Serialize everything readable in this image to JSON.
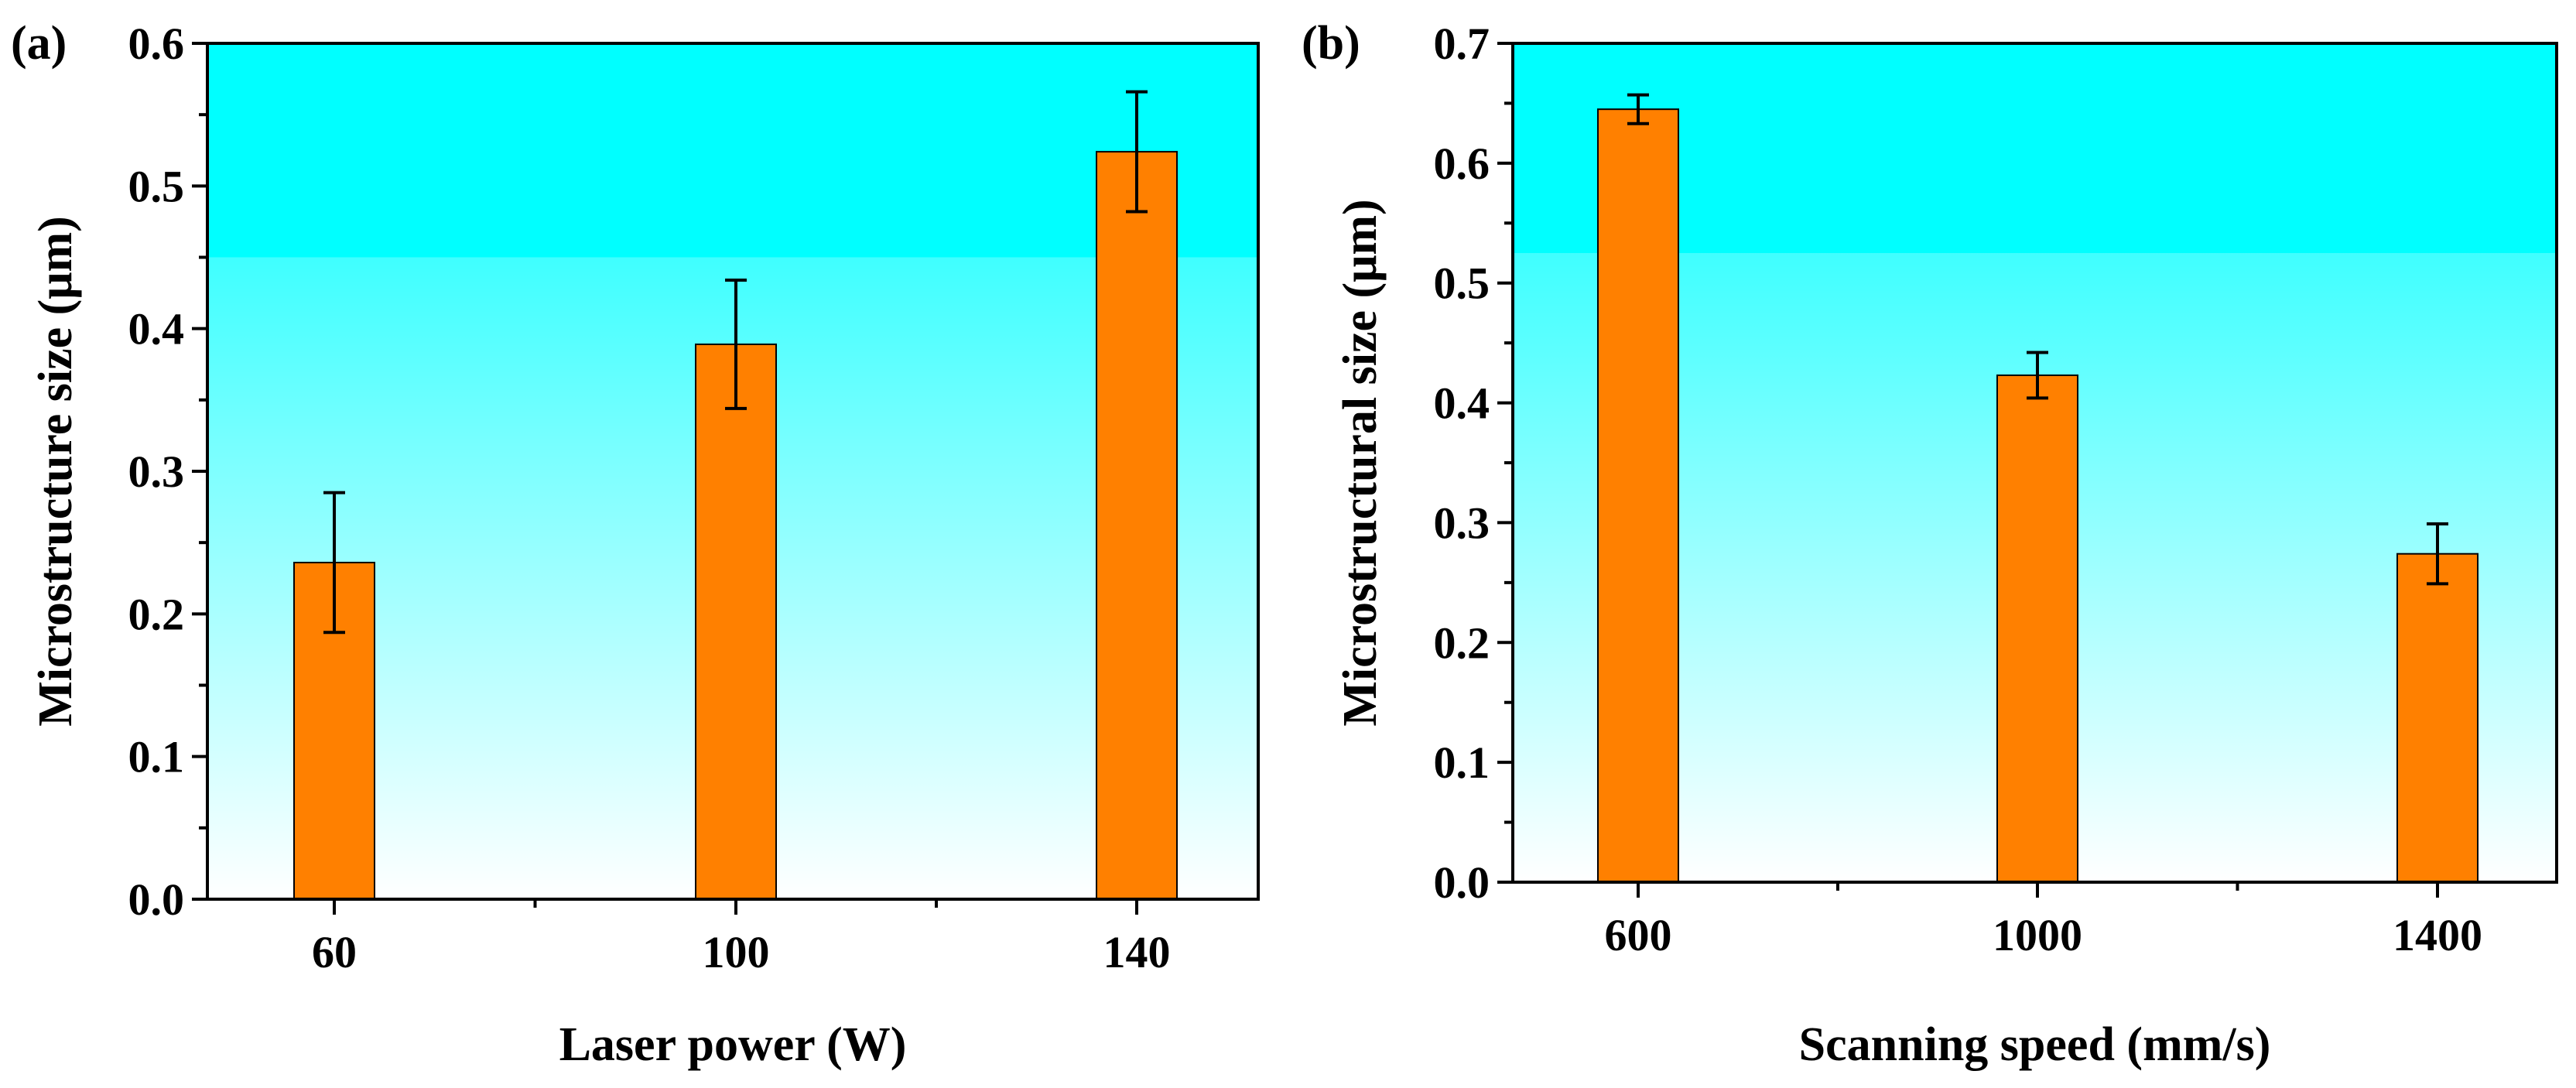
{
  "chart_data": [
    {
      "type": "bar",
      "panel_label": "(a)",
      "categories": [
        "60",
        "100",
        "140"
      ],
      "values": [
        0.236,
        0.389,
        0.524
      ],
      "errors": [
        0.049,
        0.045,
        0.042
      ],
      "xlabel": "Laser power (W)",
      "ylabel": "Microstructure size (μm)",
      "ylim": [
        0,
        0.6
      ],
      "yticks": [
        "0.0",
        "0.1",
        "0.2",
        "0.3",
        "0.4",
        "0.5",
        "0.6"
      ],
      "bar_color": "#FF8000",
      "background_gradient": [
        "#00FFFF",
        "#FFFFFF"
      ]
    },
    {
      "type": "bar",
      "panel_label": "(b)",
      "categories": [
        "600",
        "1000",
        "1400"
      ],
      "values": [
        0.645,
        0.423,
        0.274
      ],
      "errors": [
        0.012,
        0.019,
        0.025
      ],
      "xlabel": "Scanning speed (mm/s)",
      "ylabel": "Microstructural size (μm)",
      "ylim": [
        0,
        0.7
      ],
      "yticks": [
        "0.0",
        "0.1",
        "0.2",
        "0.3",
        "0.4",
        "0.5",
        "0.6",
        "0.7"
      ],
      "bar_color": "#FF8000",
      "background_gradient": [
        "#00FFFF",
        "#FFFFFF"
      ]
    }
  ]
}
